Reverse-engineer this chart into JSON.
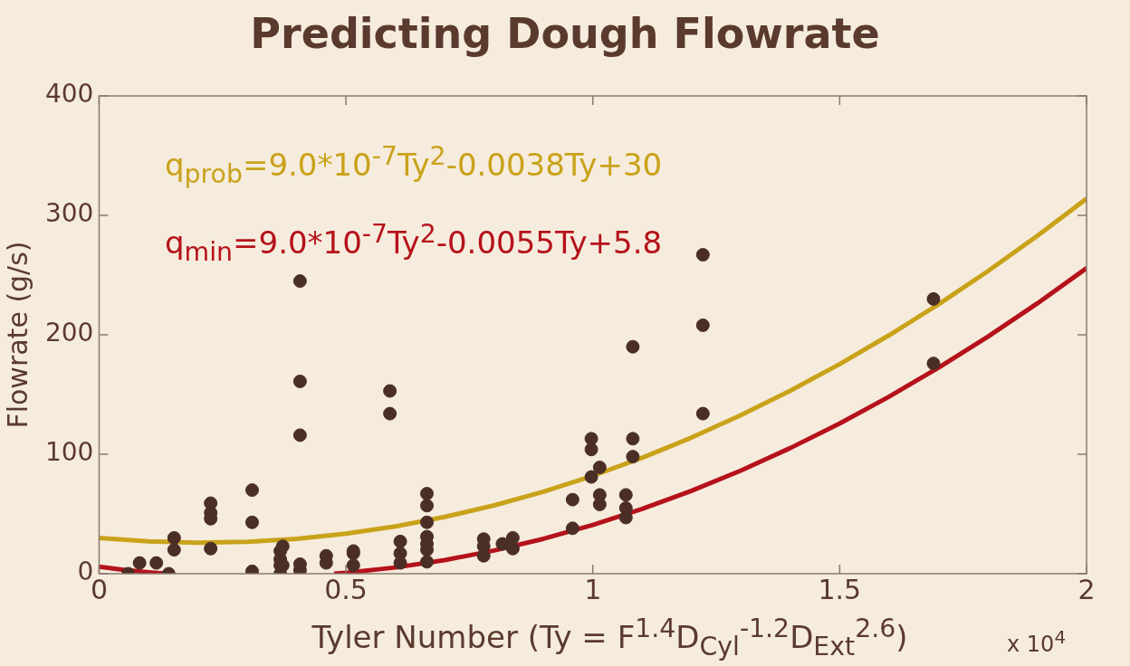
{
  "chart_data": {
    "type": "scatter",
    "title": "Predicting Dough Flowrate",
    "xlabel": "Tyler Number (Ty = F$^{1.4}$D$_{Cyl}$$^{-1.2}$D$_{Ext}$$^{2.6}$)",
    "ylabel": "Flowrate (g/s)",
    "annotations": [
      "x 10$^{4}$"
    ],
    "xlim": [
      0,
      2
    ],
    "xticks": [
      0,
      0.5,
      1,
      1.5,
      2
    ],
    "ylim": [
      0,
      400
    ],
    "yticks": [
      0,
      100,
      200,
      300,
      400
    ],
    "grid": false,
    "legend": "top left",
    "marker": "circle",
    "line_style": "solid",
    "series": [
      {
        "color": "#4b2e26",
        "x": [
          0.059,
          0.082,
          0.116,
          0.141,
          0.152,
          0.152,
          0.226,
          0.226,
          0.226,
          0.226,
          0.31,
          0.31,
          0.31,
          0.367,
          0.367,
          0.367,
          0.367,
          0.372,
          0.372,
          0.407,
          0.407,
          0.407,
          0.407,
          0.407,
          0.46,
          0.46,
          0.515,
          0.515,
          0.515,
          0.589,
          0.589,
          0.61,
          0.61,
          0.61,
          0.664,
          0.664,
          0.664,
          0.664,
          0.664,
          0.664,
          0.664,
          0.779,
          0.779,
          0.779,
          0.817,
          0.838,
          0.838,
          0.959,
          0.959,
          0.997,
          0.997,
          0.997,
          1.014,
          1.014,
          1.014,
          1.067,
          1.067,
          1.067,
          1.081,
          1.081,
          1.081,
          1.223,
          1.223,
          1.223,
          1.69,
          1.69
        ],
        "values": [
          0,
          9,
          9,
          0,
          30,
          20,
          59,
          51,
          46,
          21,
          70,
          43,
          2,
          19,
          12,
          7,
          0,
          23,
          7,
          245,
          161,
          116,
          8,
          3,
          15,
          9,
          19,
          17,
          7,
          153,
          134,
          27,
          17,
          9,
          67,
          57,
          43,
          31,
          25,
          20,
          10,
          29,
          23,
          15,
          25,
          30,
          21,
          62,
          38,
          113,
          104,
          81,
          89,
          66,
          58,
          66,
          55,
          47,
          190,
          113,
          98,
          267,
          208,
          134,
          230,
          176
        ]
      },
      {
        "type": "line",
        "marker": "none",
        "name": "q$_{prob}$=9.0*10$^{-7}$Ty$^{2}$-0.0038Ty+30",
        "color": "#c9a21a",
        "x": [
          0,
          0.1,
          0.2,
          0.3,
          0.4,
          0.5,
          0.6,
          0.7,
          0.8,
          0.9,
          1,
          1.1,
          1.2,
          1.3,
          1.4,
          1.5,
          1.6,
          1.7,
          1.8,
          1.9,
          2
        ],
        "values": [
          30,
          27.1,
          26,
          26.7,
          29.2,
          33.5,
          39.6,
          47.5,
          57.2,
          68.7,
          82,
          97.1,
          114,
          132.7,
          153.2,
          175.5,
          199.6,
          225.5,
          253.2,
          282.7,
          314
        ]
      },
      {
        "type": "line",
        "marker": "none",
        "name": "q$_{min}$=9.0*10$^{-7}$Ty$^{2}$-0.0055Ty+5.8",
        "color": "#b5121b",
        "x": [
          0,
          0.05,
          0.1,
          0.136,
          0.3,
          0.476,
          0.5,
          0.6,
          0.7,
          0.8,
          0.9,
          1,
          1.1,
          1.2,
          1.3,
          1.4,
          1.5,
          1.6,
          1.7,
          1.8,
          1.9,
          2
        ],
        "values": [
          5.8,
          3.3,
          1.2,
          0,
          null,
          0,
          0.8,
          5.2,
          11.4,
          19.4,
          29.2,
          40.8,
          54.2,
          69.4,
          86.4,
          105.2,
          125.8,
          148.2,
          172.4,
          198.4,
          226.2,
          255.8
        ]
      }
    ]
  }
}
